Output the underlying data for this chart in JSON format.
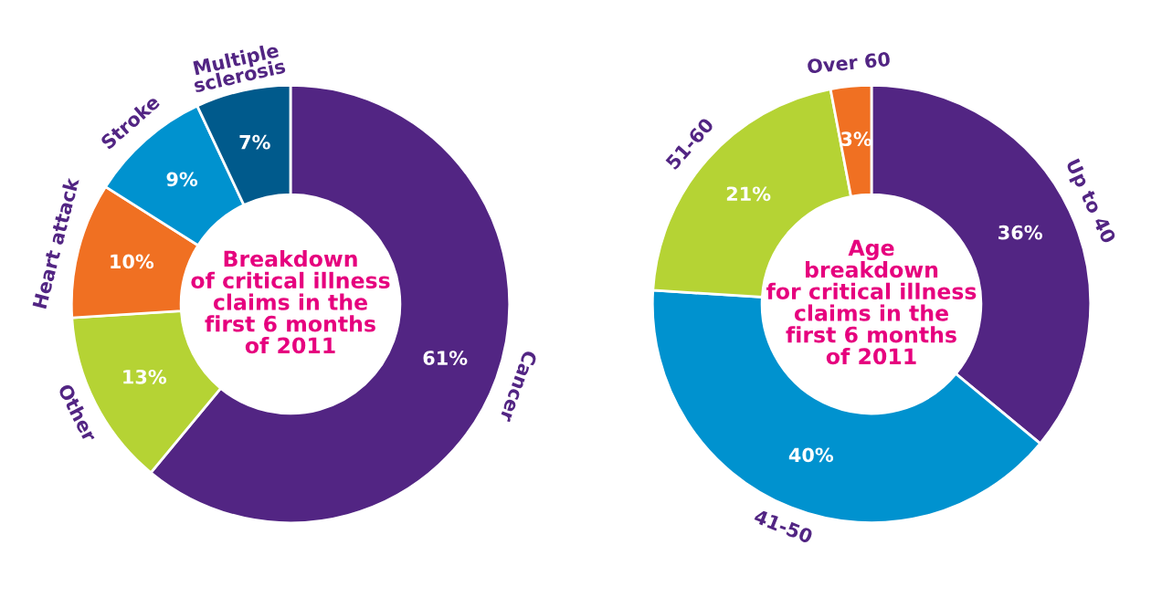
{
  "chart_data": [
    {
      "type": "donut",
      "title": "Breakdown\nof critical illness\nclaims in the\nfirst 6 months\nof 2011",
      "categories": [
        "Cancer",
        "Other",
        "Heart attack",
        "Stroke",
        "Multiple\nsclerosis"
      ],
      "values": [
        61,
        13,
        10,
        9,
        7
      ],
      "value_labels": [
        "61%",
        "13%",
        "10%",
        "9%",
        "7%"
      ],
      "colors": [
        "#522583",
        "#b5d334",
        "#f07022",
        "#0092cf",
        "#005a8c"
      ],
      "legend": false
    },
    {
      "type": "donut",
      "title": "Age\nbreakdown\nfor critical illness\nclaims in the\nfirst 6 months\nof 2011",
      "categories": [
        "Up to 40",
        "41-50",
        "51-60",
        "Over 60"
      ],
      "values": [
        36,
        40,
        21,
        3
      ],
      "value_labels": [
        "36%",
        "40%",
        "21%",
        "3%"
      ],
      "colors": [
        "#522583",
        "#0092cf",
        "#b5d334",
        "#f07022"
      ],
      "legend": false
    }
  ]
}
